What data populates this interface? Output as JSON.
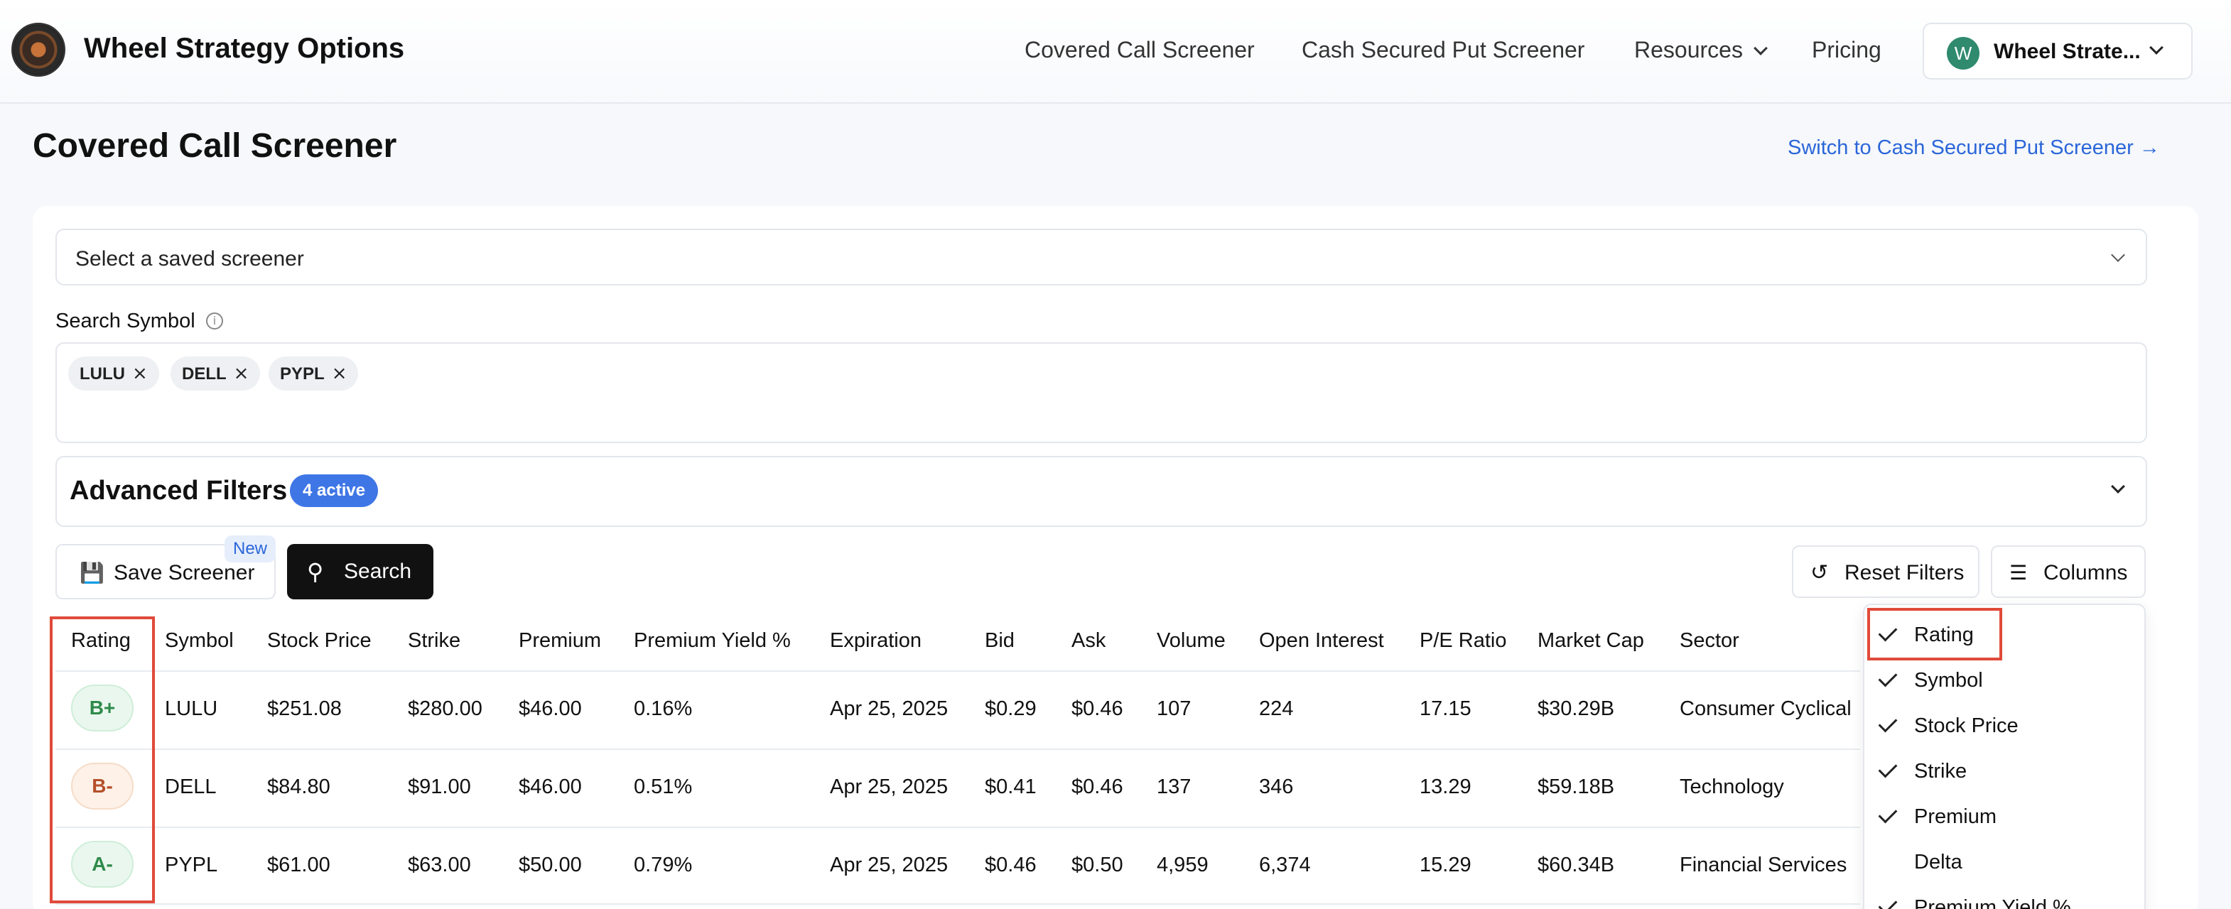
{
  "header": {
    "brand": "Wheel Strategy Options",
    "nav": {
      "covered_call": "Covered Call Screener",
      "cash_secured_put": "Cash Secured Put Screener",
      "resources": "Resources",
      "pricing": "Pricing"
    },
    "account": {
      "avatar_letter": "W",
      "name": "Wheel Strate..."
    }
  },
  "page": {
    "title": "Covered Call Screener",
    "switch_link": "Switch to Cash Secured Put Screener →"
  },
  "saved_screener": {
    "placeholder": "Select a saved screener"
  },
  "search": {
    "label": "Search Symbol",
    "tags": [
      "LULU",
      "DELL",
      "PYPL"
    ]
  },
  "advanced_filters": {
    "title": "Advanced Filters",
    "badge": "4 active"
  },
  "buttons": {
    "save_screener": "Save Screener",
    "new_badge": "New",
    "search": "Search",
    "reset_filters": "Reset Filters",
    "columns": "Columns"
  },
  "table": {
    "headers": [
      "Rating",
      "Symbol",
      "Stock Price",
      "Strike",
      "Premium",
      "Premium Yield %",
      "Expiration",
      "Bid",
      "Ask",
      "Volume",
      "Open Interest",
      "P/E Ratio",
      "Market Cap",
      "Sector"
    ],
    "rows": [
      {
        "rating": "B+",
        "symbol": "LULU",
        "stock_price": "$251.08",
        "strike": "$280.00",
        "premium": "$46.00",
        "yield": "0.16%",
        "expiration": "Apr 25, 2025",
        "bid": "$0.29",
        "ask": "$0.46",
        "volume": "107",
        "open_interest": "224",
        "pe": "17.15",
        "market_cap": "$30.29B",
        "sector": "Consumer Cyclical"
      },
      {
        "rating": "B-",
        "symbol": "DELL",
        "stock_price": "$84.80",
        "strike": "$91.00",
        "premium": "$46.00",
        "yield": "0.51%",
        "expiration": "Apr 25, 2025",
        "bid": "$0.41",
        "ask": "$0.46",
        "volume": "137",
        "open_interest": "346",
        "pe": "13.29",
        "market_cap": "$59.18B",
        "sector": "Technology"
      },
      {
        "rating": "A-",
        "symbol": "PYPL",
        "stock_price": "$61.00",
        "strike": "$63.00",
        "premium": "$50.00",
        "yield": "0.79%",
        "expiration": "Apr 25, 2025",
        "bid": "$0.46",
        "ask": "$0.50",
        "volume": "4,959",
        "open_interest": "6,374",
        "pe": "15.29",
        "market_cap": "$60.34B",
        "sector": "Financial Services"
      }
    ]
  },
  "columns_menu": {
    "items": [
      {
        "label": "Rating",
        "checked": true
      },
      {
        "label": "Symbol",
        "checked": true
      },
      {
        "label": "Stock Price",
        "checked": true
      },
      {
        "label": "Strike",
        "checked": true
      },
      {
        "label": "Premium",
        "checked": true
      },
      {
        "label": "Delta",
        "checked": false
      },
      {
        "label": "Premium Yield %",
        "checked": true
      }
    ]
  },
  "colors": {
    "accent_blue": "#3e76e6",
    "link_blue": "#2b66d9",
    "highlight_red": "#e04a3a",
    "rating_green_bg": "#eaf7ee",
    "rating_green_text": "#2e8a4a",
    "rating_orange_bg": "#fdf1e8",
    "rating_orange_text": "#b4502a"
  }
}
